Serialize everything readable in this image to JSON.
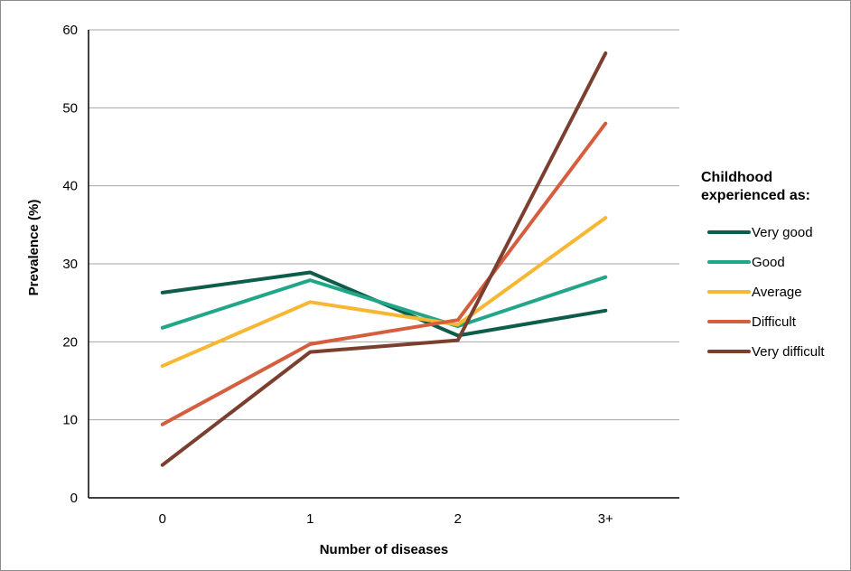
{
  "chart_data": {
    "type": "line",
    "title": "",
    "xlabel": "Number of diseases",
    "ylabel": "Prevalence (%)",
    "categories": [
      "0",
      "1",
      "2",
      "3+"
    ],
    "ylim": [
      0,
      60
    ],
    "yticks": [
      0,
      10,
      20,
      30,
      40,
      50,
      60
    ],
    "grid": true,
    "legend_placement": "right",
    "legend_title": [
      "Childhood",
      "experienced as:"
    ],
    "series": [
      {
        "name": "Very good",
        "color": "#0e5c4a",
        "values": [
          26.3,
          28.9,
          20.8,
          24.0
        ]
      },
      {
        "name": "Good",
        "color": "#22a688",
        "values": [
          21.8,
          27.9,
          22.0,
          28.3
        ]
      },
      {
        "name": "Average",
        "color": "#f7b733",
        "values": [
          16.9,
          25.1,
          22.2,
          35.9
        ]
      },
      {
        "name": "Difficult",
        "color": "#d55e3e",
        "values": [
          9.4,
          19.7,
          22.8,
          48.0
        ]
      },
      {
        "name": "Very difficult",
        "color": "#7b3f2f",
        "values": [
          4.2,
          18.7,
          20.2,
          57.0
        ]
      }
    ]
  }
}
